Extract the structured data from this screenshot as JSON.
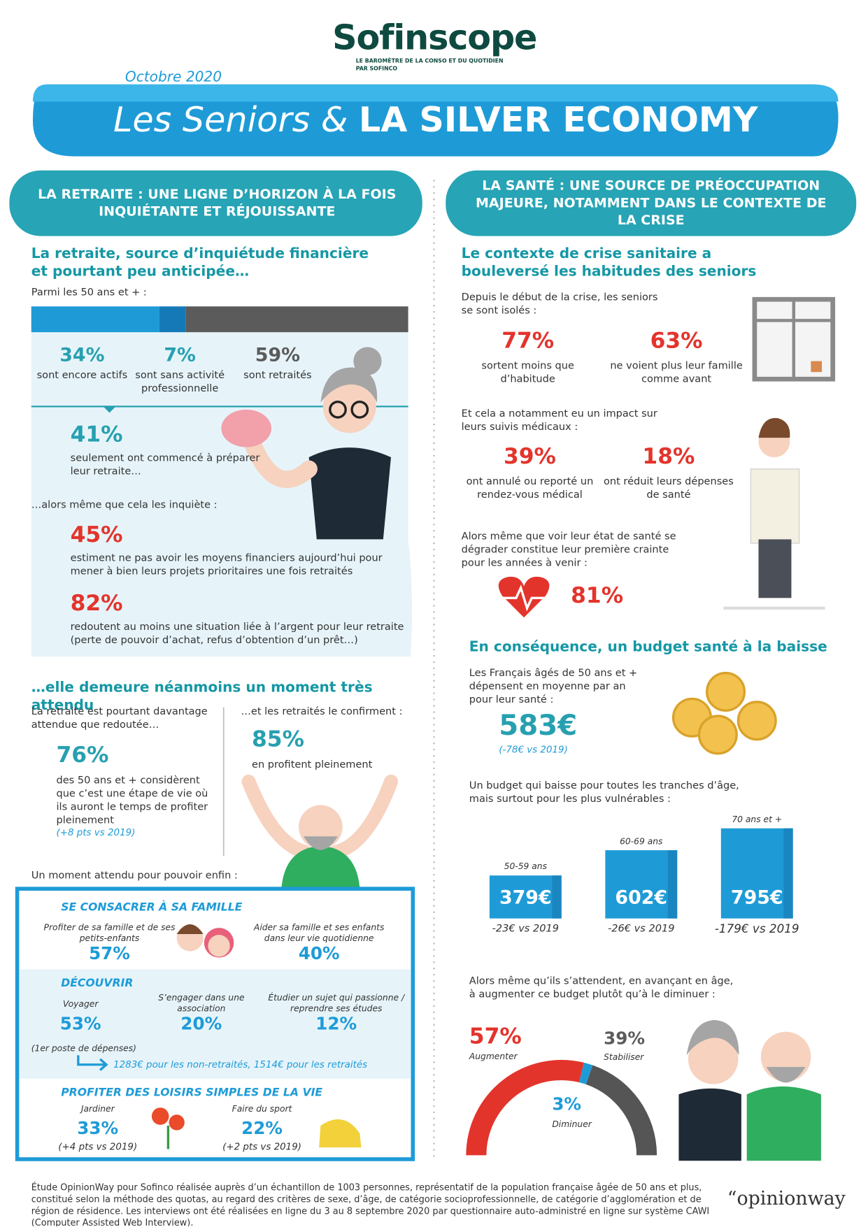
{
  "header": {
    "brand": "Sofinscope",
    "tagline": [
      "LE BAROMÈTRE DE LA CONSO ET DU QUOTIDIEN",
      "PAR SOFINCO"
    ],
    "date": "Octobre 2020",
    "title_italic": "Les Seniors &",
    "title_bold": "LA SILVER ECONOMY"
  },
  "left": {
    "section_title": "LA RETRAITE : UNE LIGNE D’HORIZON À LA FOIS INQUIÉTANTE ET RÉJOUISSANTE",
    "heading": "La retraite, source d’inquiétude financière et pourtant peu anticipée…",
    "intro": "Parmi les 50 ans et + :",
    "status": [
      {
        "value": 34,
        "label": "34%",
        "text": "sont encore actifs",
        "color": "#1e9bd7"
      },
      {
        "value": 7,
        "label": "7%",
        "text": "sont sans activité professionnelle",
        "color": "#1579b8"
      },
      {
        "value": 59,
        "label": "59%",
        "text": "sont retraités",
        "color": "#5b5b5b"
      }
    ],
    "prepared": {
      "pct": "41%",
      "text": "seulement ont commencé à préparer leur retraite…"
    },
    "worry_intro": "…alors même que cela les inquiète :",
    "means": {
      "pct": "45%",
      "text": "estiment ne pas avoir les moyens financiers aujourd’hui pour mener à bien leurs projets prioritaires une fois retraités"
    },
    "fear": {
      "pct": "82%",
      "text": "redoutent au moins une situation liée à l’argent pour leur retraite (perte de pouvoir d’achat, refus d’obtention d’un prêt…)"
    },
    "heading2": "…elle demeure néanmoins un moment très attendu",
    "awaited_intro": "La retraite est pourtant davantage attendue que redoutée…",
    "awaited": {
      "pct": "76%",
      "text": "des 50 ans et + considèrent que c’est une étape de vie où ils auront le temps de profiter pleinement",
      "change": "(+8 pts vs 2019)"
    },
    "confirm_intro": "…et les retraités le confirment :",
    "confirm": {
      "pct": "85%",
      "text": "en profitent pleinement"
    },
    "box_intro": "Un moment attendu pour pouvoir enfin :",
    "family": {
      "title": "SE CONSACRER À SA FAMILLE",
      "items": [
        {
          "text": "Profiter de sa famille et de ses petits-enfants",
          "pct": "57%"
        },
        {
          "text": "Aider sa famille et ses enfants dans leur vie quotidienne",
          "pct": "40%"
        }
      ]
    },
    "discover": {
      "title": "DÉCOUVRIR",
      "items": [
        {
          "text": "Voyager",
          "pct": "53%"
        },
        {
          "text": "S’engager dans une association",
          "pct": "20%"
        },
        {
          "text": "Étudier un sujet qui passionne / reprendre ses études",
          "pct": "12%"
        }
      ],
      "note": "(1er poste de dépenses)",
      "spend": "1283€ pour les non-retraités, 1514€ pour les retraités"
    },
    "leisure": {
      "title": "PROFITER DES LOISIRS SIMPLES DE LA VIE",
      "items": [
        {
          "text": "Jardiner",
          "pct": "33%",
          "change": "(+4 pts vs 2019)"
        },
        {
          "text": "Faire du sport",
          "pct": "22%",
          "change": "(+2 pts vs 2019)"
        }
      ]
    }
  },
  "right": {
    "section_title": "LA SANTÉ : UNE SOURCE DE PRÉOCCUPATION MAJEURE, NOTAMMENT DANS LE CONTEXTE DE LA CRISE",
    "heading": "Le contexte de crise sanitaire a bouleversé les habitudes des seniors",
    "isolated_intro": "Depuis le début de la crise, les seniors se sont isolés :",
    "isolated": [
      {
        "pct": "77%",
        "text": "sortent moins que d’habitude"
      },
      {
        "pct": "63%",
        "text": "ne voient plus leur famille comme avant"
      }
    ],
    "medical_intro": "Et cela a notamment eu un impact sur leurs suivis médicaux :",
    "medical": [
      {
        "pct": "39%",
        "text": "ont annulé ou reporté un rendez-vous médical"
      },
      {
        "pct": "18%",
        "text": "ont réduit leurs dépenses de santé"
      }
    ],
    "fear_intro": "Alors même que voir leur état de santé se dégrader constitue leur première crainte pour les années à venir :",
    "fear_pct": "81%",
    "heading2": "En conséquence, un budget santé à la baisse",
    "budget_intro": "Les Français âgés de 50 ans et + dépensent en moyenne par an pour leur santé :",
    "budget": "583€",
    "budget_change": "(-78€ vs 2019)",
    "ages_intro": "Un budget qui baisse pour toutes les tranches d’âge, mais surtout pour les plus vulnérables :",
    "ages": [
      {
        "age": "50-59 ans",
        "value": 379,
        "label": "379€",
        "change": "-23€ vs 2019"
      },
      {
        "age": "60-69 ans",
        "value": 602,
        "label": "602€",
        "change": "-26€ vs 2019"
      },
      {
        "age": "70 ans et +",
        "value": 795,
        "label": "795€",
        "change": "-179€ vs 2019"
      }
    ],
    "expect_intro": "Alors même qu’ils s’attendent, en avançant en âge, à augmenter ce budget plutôt qu’à le diminuer :",
    "expect": [
      {
        "name": "Augmenter",
        "value": 57,
        "label": "57%",
        "color": "#e3342c"
      },
      {
        "name": "Diminuer",
        "value": 3,
        "label": "3%",
        "color": "#1e9bd7"
      },
      {
        "name": "Stabiliser",
        "value": 39,
        "label": "39%",
        "color": "#555555"
      }
    ]
  },
  "footer": {
    "note": "Étude OpinionWay pour Sofinco réalisée auprès d’un échantillon de 1003 personnes, représentatif de la population française âgée de 50 ans et plus, constitué selon la méthode des quotas, au regard des critères de sexe, d’âge, de catégorie socioprofessionnelle, de catégorie d’agglomération et de région de résidence. Les interviews ont été réalisées en ligne du 3 au 8 septembre 2020 par questionnaire auto-administré en ligne sur système CAWI (Computer Assisted Web Interview).",
    "logo": "“opinionway"
  }
}
